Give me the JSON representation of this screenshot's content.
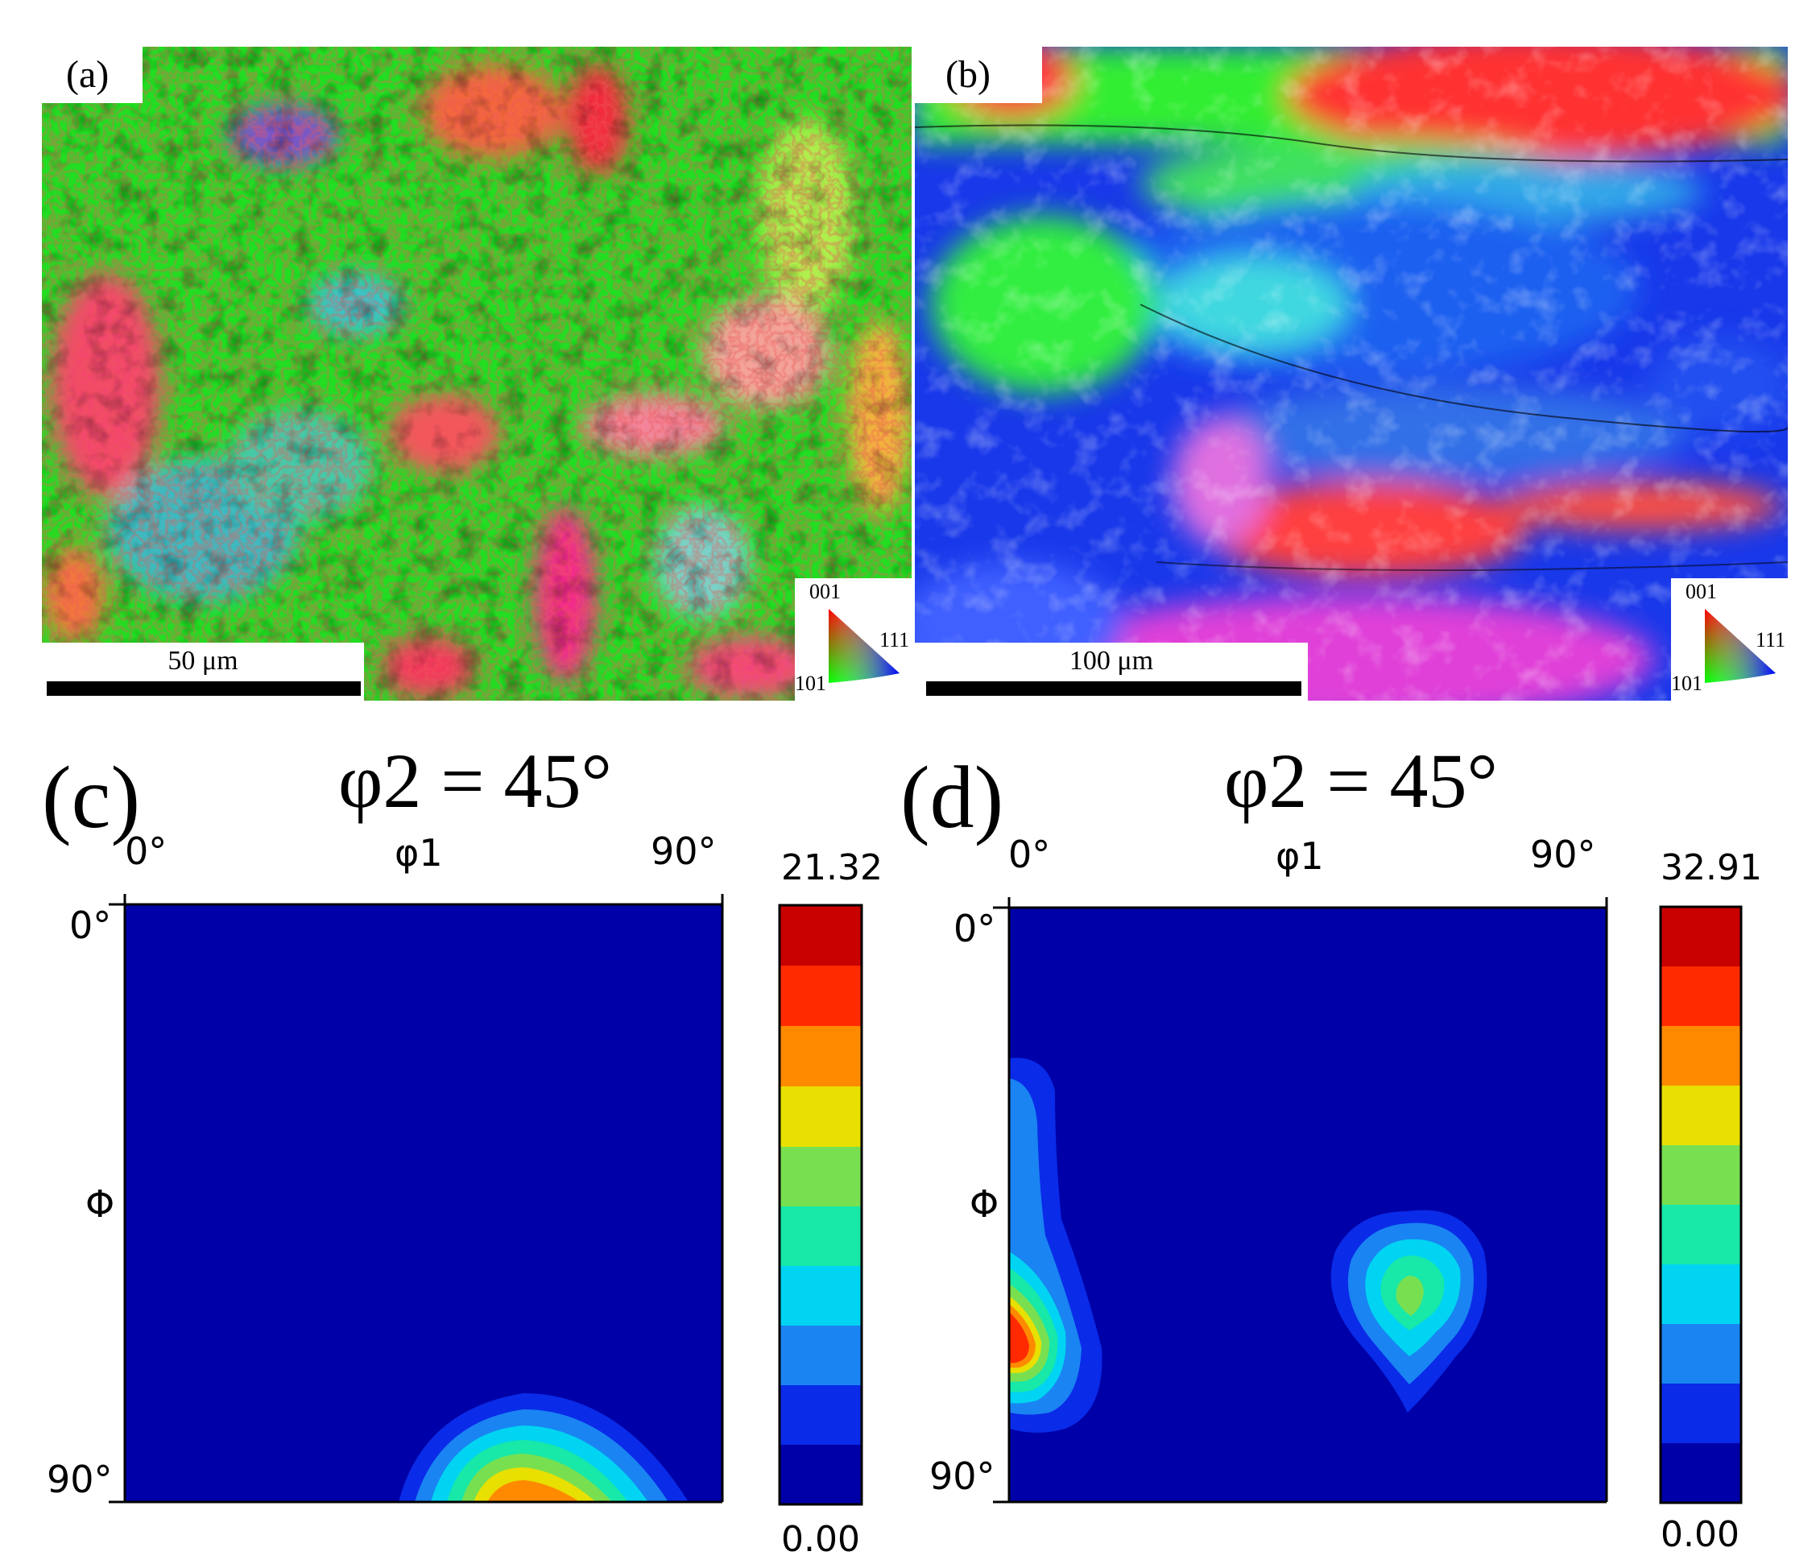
{
  "panels": {
    "a": {
      "label": "(a)",
      "scale_bar_text": "50 μm",
      "ipf_legend": {
        "top": "001",
        "right": "111",
        "left": "101"
      }
    },
    "b": {
      "label": "(b)",
      "scale_bar_text": "100 μm",
      "ipf_legend": {
        "top": "001",
        "right": "111",
        "left": "101"
      }
    },
    "c": {
      "label": "(c)",
      "title": "φ2 = 45°",
      "x_axis_label": "φ1",
      "x_tick_start": "0°",
      "x_tick_end": "90°",
      "y_axis_label": "Φ",
      "y_tick_start": "0°",
      "y_tick_end": "90°",
      "colorbar_max": "21.32",
      "colorbar_min": "0.00"
    },
    "d": {
      "label": "(d)",
      "title": "φ2 = 45°",
      "x_axis_label": "φ1",
      "x_tick_start": "0°",
      "x_tick_end": "90°",
      "y_axis_label": "Φ",
      "y_tick_start": "0°",
      "y_tick_end": "90°",
      "colorbar_max": "32.91",
      "colorbar_min": "0.00"
    }
  },
  "colormap": [
    "#0000a8",
    "#0a2be8",
    "#1a84f2",
    "#00d4f2",
    "#18e8a8",
    "#78e050",
    "#e8e000",
    "#ff8a00",
    "#ff2a00",
    "#c80000"
  ],
  "ipf_colors": {
    "green": "#22ee22",
    "blue": "#1030ee",
    "red": "#ff2020",
    "cyan": "#30c0e0",
    "magenta": "#ff40d0"
  }
}
